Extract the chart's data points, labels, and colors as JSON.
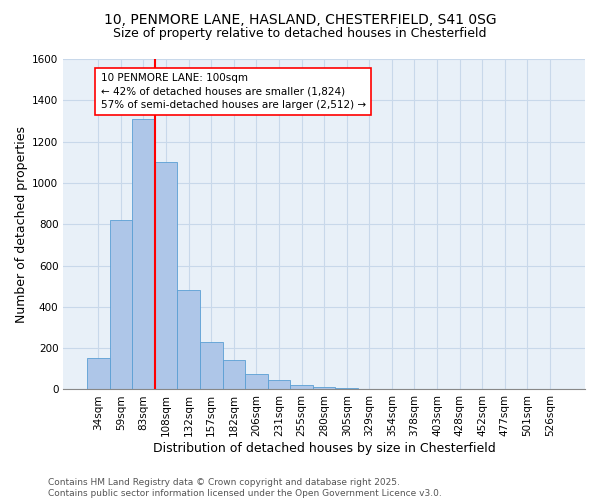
{
  "title_line1": "10, PENMORE LANE, HASLAND, CHESTERFIELD, S41 0SG",
  "title_line2": "Size of property relative to detached houses in Chesterfield",
  "xlabel": "Distribution of detached houses by size in Chesterfield",
  "ylabel": "Number of detached properties",
  "categories": [
    "34sqm",
    "59sqm",
    "83sqm",
    "108sqm",
    "132sqm",
    "157sqm",
    "182sqm",
    "206sqm",
    "231sqm",
    "255sqm",
    "280sqm",
    "305sqm",
    "329sqm",
    "354sqm",
    "378sqm",
    "403sqm",
    "428sqm",
    "452sqm",
    "477sqm",
    "501sqm",
    "526sqm"
  ],
  "values": [
    150,
    820,
    1310,
    1100,
    480,
    230,
    145,
    75,
    45,
    20,
    10,
    5,
    3,
    2,
    1,
    1,
    1,
    0,
    0,
    0,
    0
  ],
  "bar_color": "#aec6e8",
  "bar_edge_color": "#5a9fd4",
  "vline_color": "red",
  "vline_pos": 2.5,
  "annotation_text": "10 PENMORE LANE: 100sqm\n← 42% of detached houses are smaller (1,824)\n57% of semi-detached houses are larger (2,512) →",
  "annotation_box_color": "white",
  "annotation_border_color": "red",
  "ylim": [
    0,
    1600
  ],
  "yticks": [
    0,
    200,
    400,
    600,
    800,
    1000,
    1200,
    1400,
    1600
  ],
  "grid_color": "#c8d8ea",
  "background_color": "#e8f0f8",
  "footer": "Contains HM Land Registry data © Crown copyright and database right 2025.\nContains public sector information licensed under the Open Government Licence v3.0.",
  "title_fontsize": 10,
  "subtitle_fontsize": 9,
  "axis_label_fontsize": 9,
  "tick_fontsize": 7.5,
  "annotation_fontsize": 7.5,
  "footer_fontsize": 6.5
}
